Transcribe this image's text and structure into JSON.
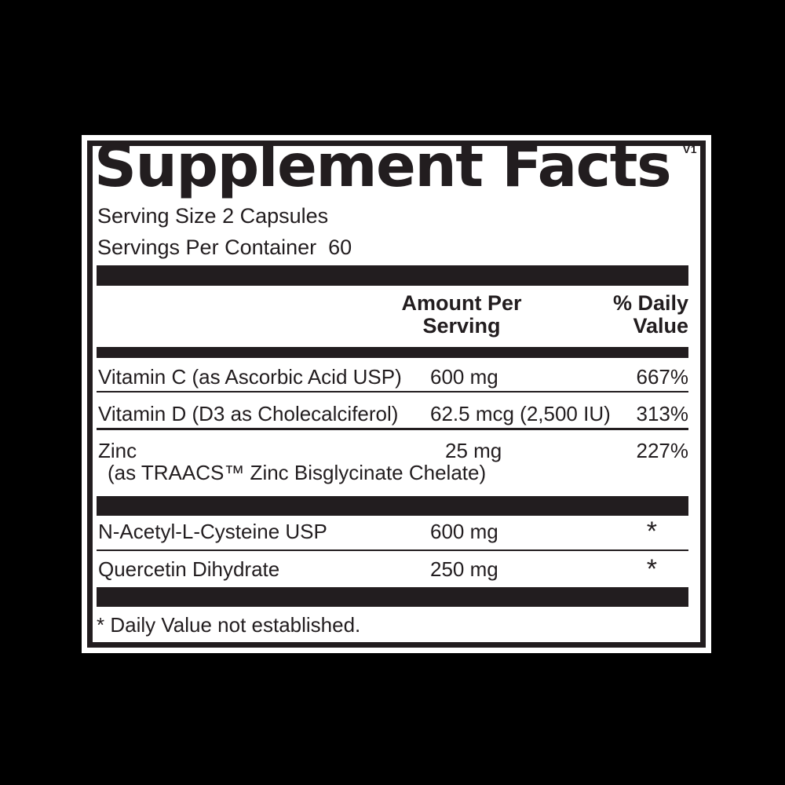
{
  "background_color": "#000000",
  "panel": {
    "ink_color": "#221d1f",
    "title": "Supplement Facts",
    "version": "V1",
    "serving_size": "Serving Size 2 Capsules",
    "servings_per_container": "Servings Per Container  60",
    "header": {
      "amount_line1": "Amount Per",
      "amount_line2": "Serving",
      "dv_line1": "% Daily",
      "dv_line2": "Value"
    },
    "rows": [
      {
        "name": "Vitamin C (as Ascorbic Acid USP)",
        "amount": "600 mg",
        "dv": "667%"
      },
      {
        "name": "Vitamin D (D3 as Cholecalciferol)",
        "amount": "62.5 mcg (2,500 IU)",
        "dv": "313%"
      },
      {
        "name": "Zinc",
        "amount": "25 mg",
        "dv": "227%",
        "sub": "(as TRAACS™ Zinc Bisglycinate Chelate)"
      }
    ],
    "other_rows": [
      {
        "name": "N-Acetyl-L-Cysteine USP",
        "amount": "600 mg",
        "dv": "*"
      },
      {
        "name": "Quercetin Dihydrate",
        "amount": "250 mg",
        "dv": "*"
      }
    ],
    "footnote": "* Daily Value not established."
  }
}
